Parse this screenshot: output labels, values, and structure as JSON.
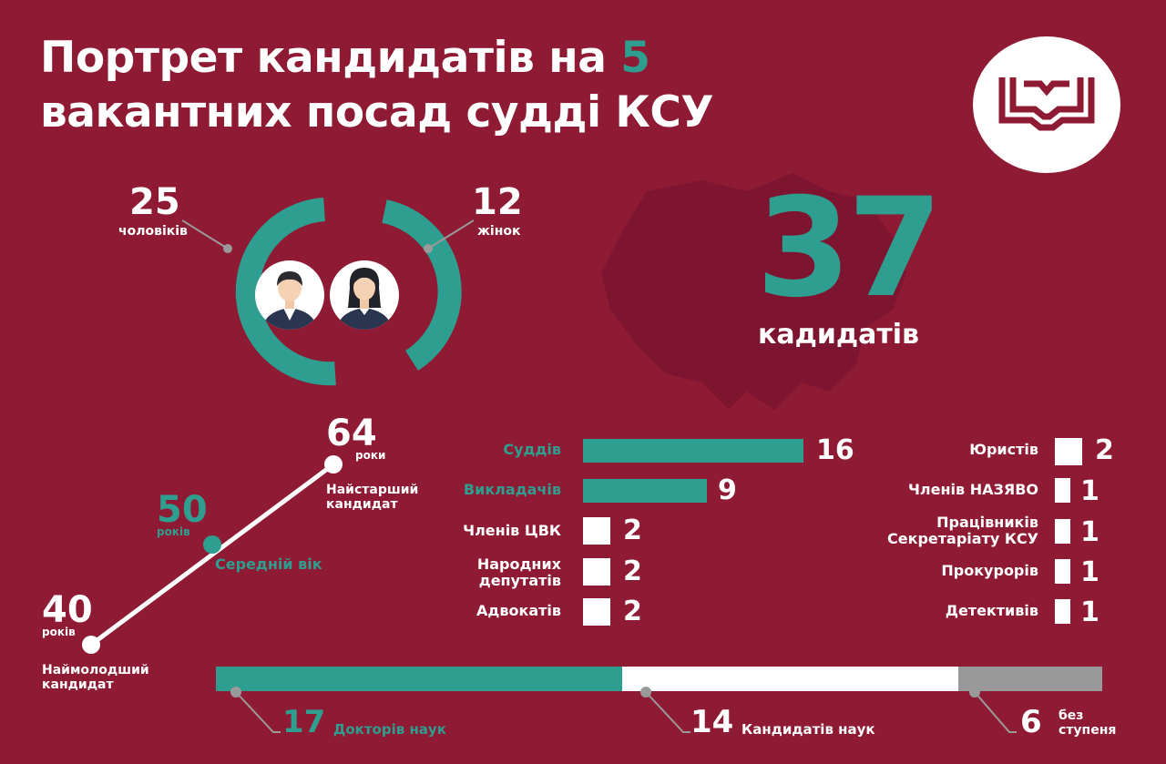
{
  "title": {
    "line1_pre": "Портрет кандидатів на ",
    "line1_num": "5",
    "line2": "вакантних посад судді КСУ"
  },
  "logo": {
    "icon": "open-book-icon"
  },
  "gender": {
    "men_count": "25",
    "men_label": "чоловіків",
    "women_count": "12",
    "women_label": "жінок",
    "men_icon": "man-avatar-icon",
    "women_icon": "woman-avatar-icon"
  },
  "total": {
    "count": "37",
    "label": "кадидатів"
  },
  "age": {
    "oldest_value": "64",
    "oldest_unit": "роки",
    "oldest_label_1": "Найстарший",
    "oldest_label_2": "кандидат",
    "average_value": "50",
    "average_unit": "років",
    "average_label": "Середній вік",
    "youngest_value": "40",
    "youngest_unit": "років",
    "youngest_label_1": "Наймолодший",
    "youngest_label_2": "кандидат"
  },
  "professions_left": [
    {
      "label": "Суддів",
      "value": "16"
    },
    {
      "label": "Викладачів",
      "value": "9"
    },
    {
      "label": "Членів ЦВК",
      "value": "2"
    },
    {
      "label_1": "Народних",
      "label_2": "депутатів",
      "value": "2"
    },
    {
      "label": "Адвокатів",
      "value": "2"
    }
  ],
  "professions_right": [
    {
      "label": "Юристів",
      "value": "2"
    },
    {
      "label": "Членів НАЗЯВО",
      "value": "1"
    },
    {
      "label_1": "Працівників",
      "label_2": "Секретаріату КСУ",
      "value": "1"
    },
    {
      "label": "Прокурорів",
      "value": "1"
    },
    {
      "label": "Детективів",
      "value": "1"
    }
  ],
  "degrees": [
    {
      "count": "17",
      "label": "Докторів наук",
      "value": 17
    },
    {
      "count": "14",
      "label": "Кандидатів наук",
      "value": 14
    },
    {
      "count": "6",
      "label_1": "без",
      "label_2": "ступеня",
      "value": 6
    }
  ],
  "colors": {
    "background": "#8e1a33",
    "teal": "#2d9e8f",
    "white": "#ffffff",
    "gray": "#999999"
  }
}
